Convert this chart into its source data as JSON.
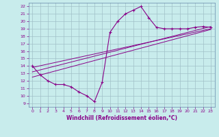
{
  "title": "",
  "xlabel": "Windchill (Refroidissement éolien,°C)",
  "xlim": [
    -0.5,
    23.5
  ],
  "ylim": [
    8.5,
    22.5
  ],
  "xticks": [
    0,
    1,
    2,
    3,
    4,
    5,
    6,
    7,
    8,
    9,
    10,
    11,
    12,
    13,
    14,
    15,
    16,
    17,
    18,
    19,
    20,
    21,
    22,
    23
  ],
  "yticks": [
    9,
    10,
    11,
    12,
    13,
    14,
    15,
    16,
    17,
    18,
    19,
    20,
    21,
    22
  ],
  "bg_color": "#c8ecec",
  "grid_color": "#a0c0c8",
  "line_color": "#880088",
  "main_line": {
    "x": [
      0,
      1,
      2,
      3,
      4,
      5,
      6,
      7,
      8,
      9,
      10,
      11,
      12,
      13,
      14,
      15,
      16,
      17,
      18,
      19,
      20,
      21,
      22,
      23
    ],
    "y": [
      14.0,
      12.8,
      12.0,
      11.5,
      11.5,
      11.2,
      10.5,
      10.0,
      9.2,
      11.8,
      18.5,
      20.0,
      21.0,
      21.5,
      22.0,
      20.5,
      19.2,
      19.0,
      19.0,
      19.0,
      19.0,
      19.2,
      19.3,
      19.2
    ]
  },
  "line1": {
    "x": [
      0,
      23
    ],
    "y": [
      13.2,
      19.3
    ]
  },
  "line2": {
    "x": [
      0,
      23
    ],
    "y": [
      12.5,
      18.9
    ]
  },
  "line3": {
    "x": [
      0,
      23
    ],
    "y": [
      13.8,
      19.0
    ]
  },
  "tick_fontsize": 4.5,
  "xlabel_fontsize": 5.5
}
